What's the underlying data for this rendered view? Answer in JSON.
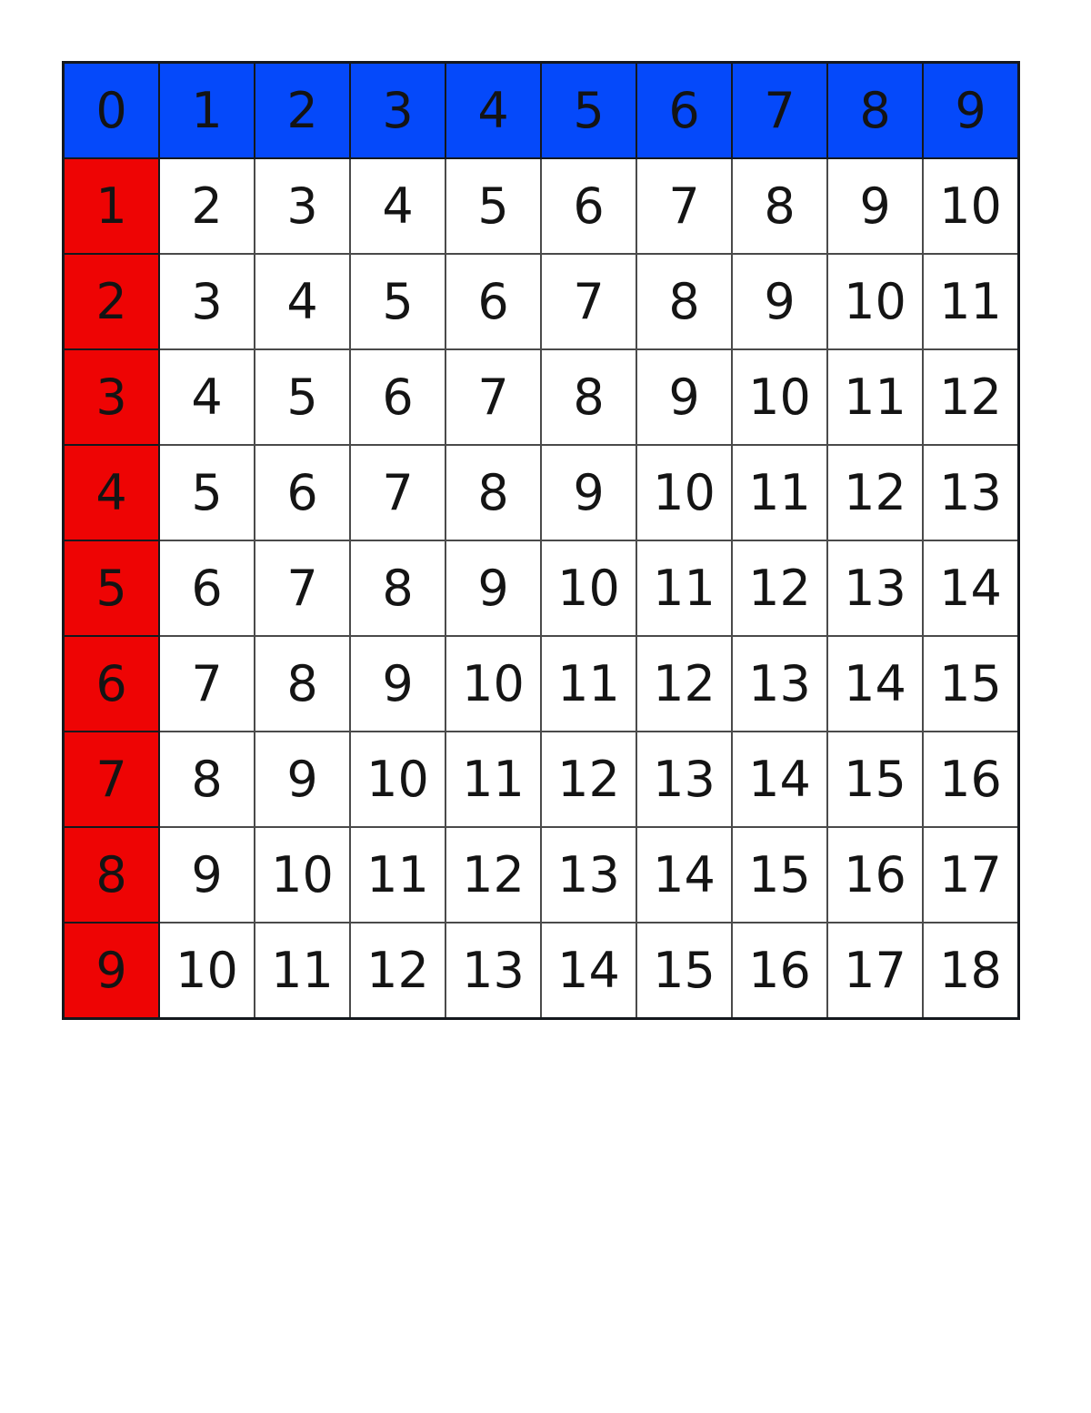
{
  "page": {
    "background": "#ffffff"
  },
  "colors": {
    "header_bg": "#0549fa",
    "row_header_bg": "#ee0404",
    "cell_bg": "#ffffff",
    "grid_line": "#4a4a4a",
    "frame": "#14181d",
    "text": "#141414"
  },
  "grid": {
    "header": [
      "0",
      "1",
      "2",
      "3",
      "4",
      "5",
      "6",
      "7",
      "8",
      "9"
    ],
    "rows": [
      {
        "label": "1",
        "cells": [
          "2",
          "3",
          "4",
          "5",
          "6",
          "7",
          "8",
          "9",
          "10"
        ]
      },
      {
        "label": "2",
        "cells": [
          "3",
          "4",
          "5",
          "6",
          "7",
          "8",
          "9",
          "10",
          "11"
        ]
      },
      {
        "label": "3",
        "cells": [
          "4",
          "5",
          "6",
          "7",
          "8",
          "9",
          "10",
          "11",
          "12"
        ]
      },
      {
        "label": "4",
        "cells": [
          "5",
          "6",
          "7",
          "8",
          "9",
          "10",
          "11",
          "12",
          "13"
        ]
      },
      {
        "label": "5",
        "cells": [
          "6",
          "7",
          "8",
          "9",
          "10",
          "11",
          "12",
          "13",
          "14"
        ]
      },
      {
        "label": "6",
        "cells": [
          "7",
          "8",
          "9",
          "10",
          "11",
          "12",
          "13",
          "14",
          "15"
        ]
      },
      {
        "label": "7",
        "cells": [
          "8",
          "9",
          "10",
          "11",
          "12",
          "13",
          "14",
          "15",
          "16"
        ]
      },
      {
        "label": "8",
        "cells": [
          "9",
          "10",
          "11",
          "12",
          "13",
          "14",
          "15",
          "16",
          "17"
        ]
      },
      {
        "label": "9",
        "cells": [
          "10",
          "11",
          "12",
          "13",
          "14",
          "15",
          "16",
          "17",
          "18"
        ]
      }
    ]
  }
}
